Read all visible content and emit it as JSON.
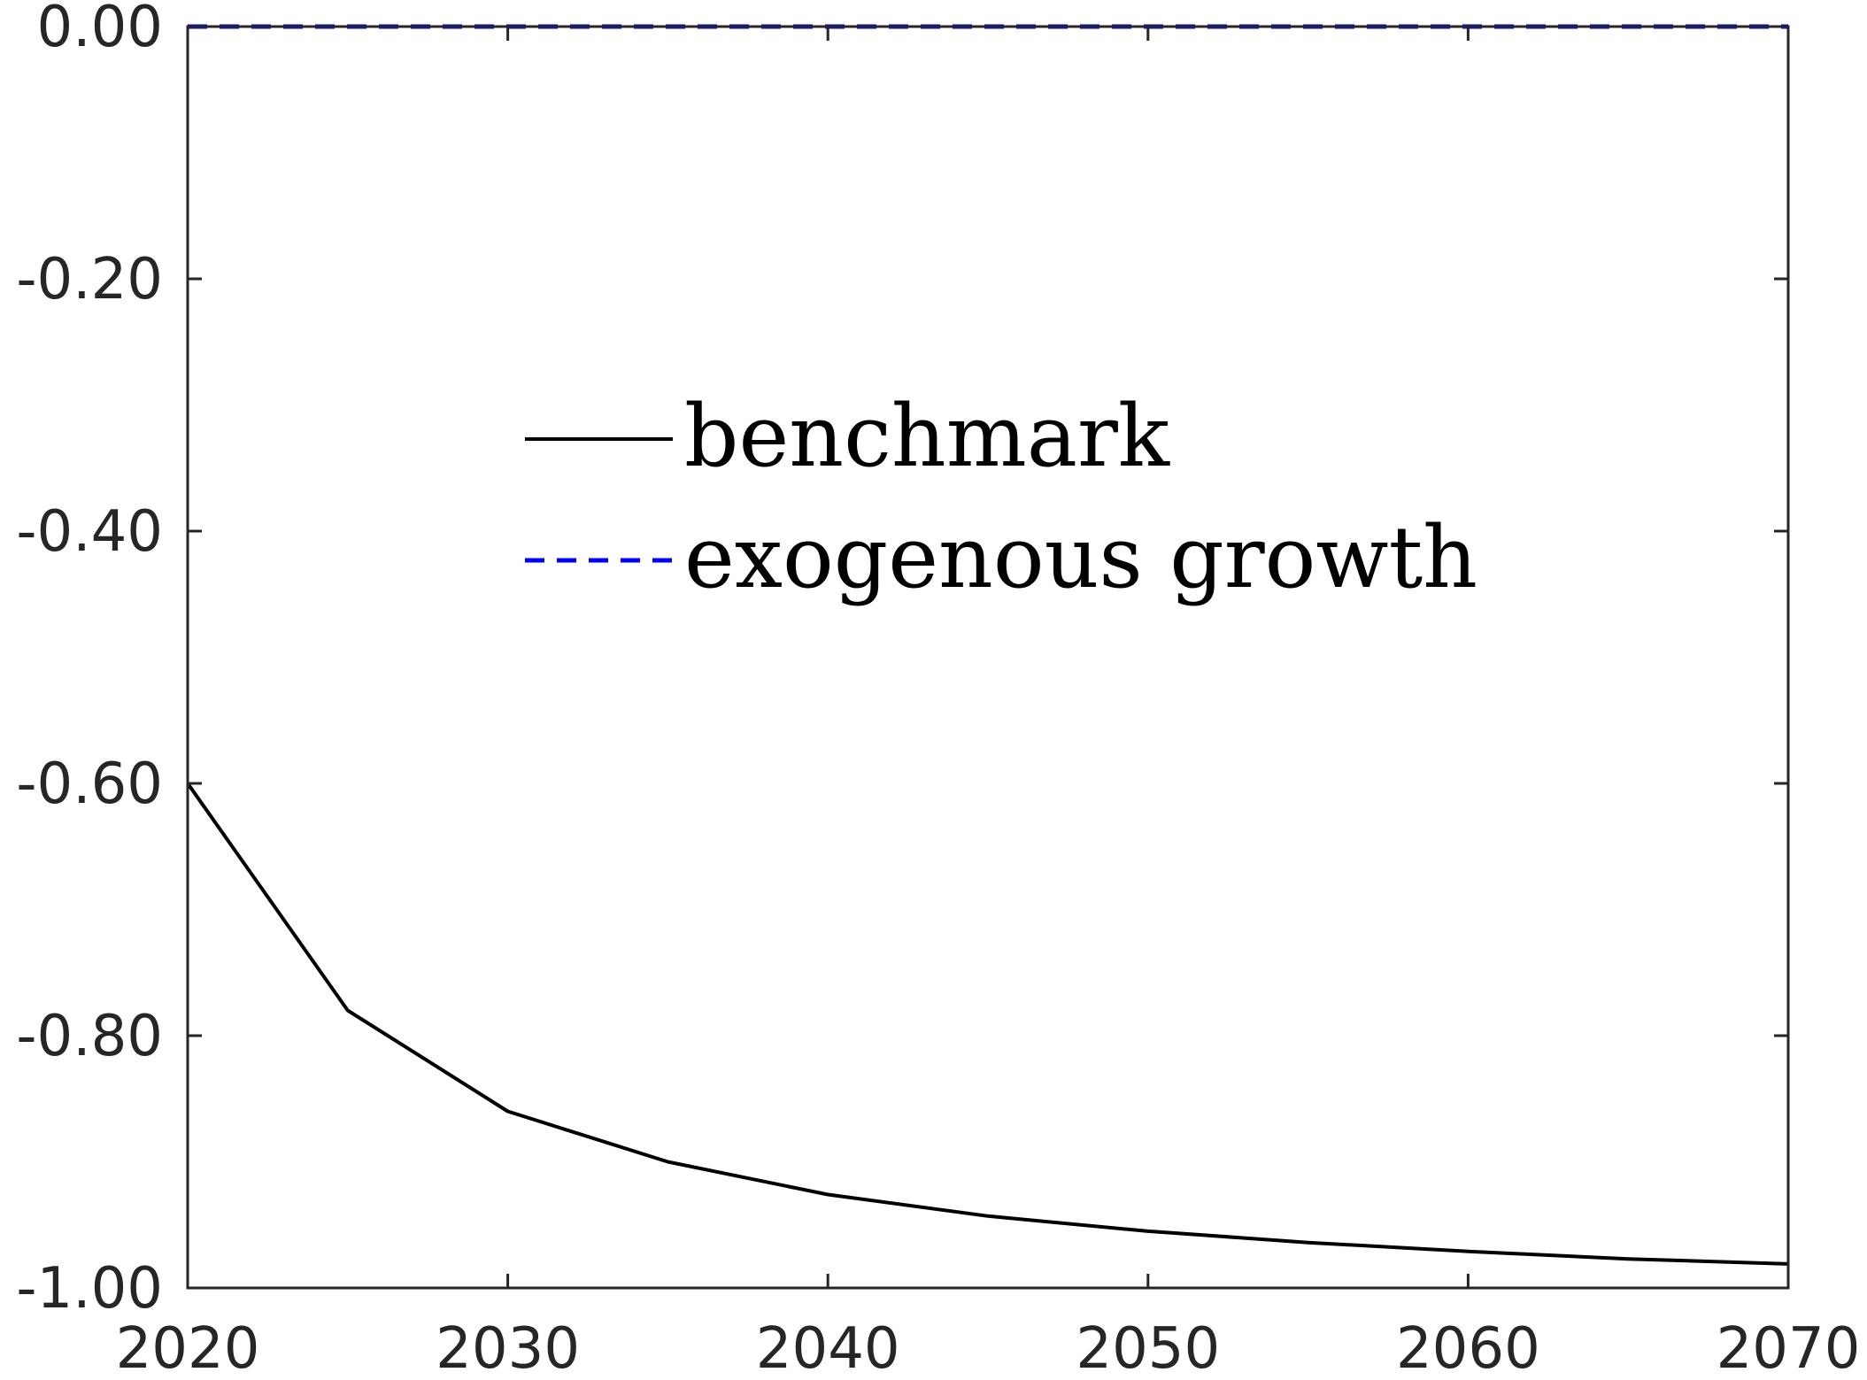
{
  "chart_data": {
    "type": "line",
    "title": "",
    "xlabel": "",
    "ylabel": "",
    "xlim": [
      2020,
      2070
    ],
    "ylim": [
      -1.0,
      0.0
    ],
    "x_ticks": [
      2020,
      2030,
      2040,
      2050,
      2060,
      2070
    ],
    "x_tick_labels": [
      "2020",
      "2030",
      "2040",
      "2050",
      "2060",
      "2070"
    ],
    "y_ticks": [
      0.0,
      -0.2,
      -0.4,
      -0.6,
      -0.8,
      -1.0
    ],
    "y_tick_labels": [
      "0.00",
      "-0.20",
      "-0.40",
      "-0.60",
      "-0.80",
      "-1.00"
    ],
    "grid": false,
    "legend_position": "upper-center",
    "series": [
      {
        "name": "benchmark",
        "color": "#000000",
        "line_style": "solid",
        "x": [
          2020,
          2025,
          2030,
          2035,
          2040,
          2045,
          2050,
          2055,
          2060,
          2065,
          2070
        ],
        "y": [
          -0.6,
          -0.78,
          -0.86,
          -0.9,
          -0.926,
          -0.943,
          -0.955,
          -0.964,
          -0.971,
          -0.977,
          -0.981
        ]
      },
      {
        "name": "exogenous growth",
        "color": "#0000ff",
        "line_style": "dashed",
        "x": [
          2020,
          2025,
          2030,
          2035,
          2040,
          2045,
          2050,
          2055,
          2060,
          2065,
          2070
        ],
        "y": [
          0,
          0,
          0,
          0,
          0,
          0,
          0,
          0,
          0,
          0,
          0
        ]
      }
    ]
  }
}
